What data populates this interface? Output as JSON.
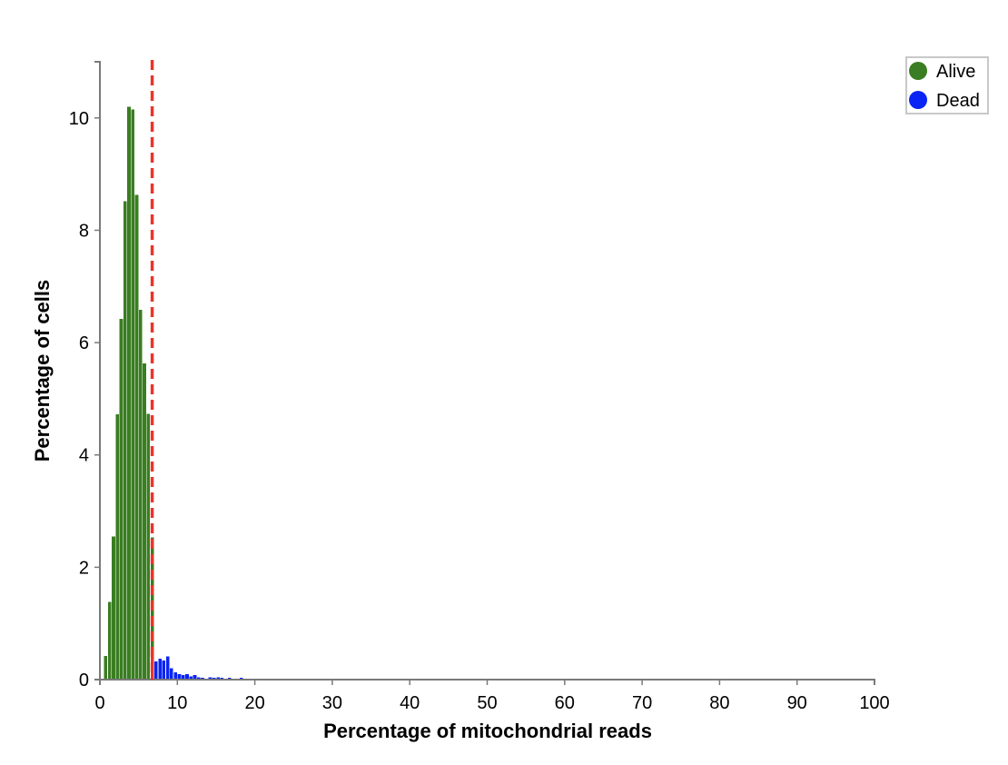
{
  "chart_data": {
    "type": "bar",
    "title": "",
    "xlabel": "Percentage of mitochondrial reads",
    "ylabel": "Percentage of cells",
    "xlim": [
      0,
      100
    ],
    "ylim": [
      0,
      11
    ],
    "xticks": [
      0,
      10,
      20,
      30,
      40,
      50,
      60,
      70,
      80,
      90,
      100
    ],
    "yticks": [
      0,
      2,
      4,
      6,
      8,
      10
    ],
    "bin_width": 0.5,
    "grid": false,
    "legend_position": "top-right",
    "threshold": {
      "x": 6.75,
      "color": "#e8352b",
      "style": "dashed"
    },
    "series": [
      {
        "name": "Alive",
        "color": "#3a7d22",
        "x": [
          0.5,
          1.0,
          1.5,
          2.0,
          2.5,
          3.0,
          3.5,
          4.0,
          4.5,
          5.0,
          5.5,
          6.0,
          6.5
        ],
        "values": [
          0.42,
          1.38,
          2.55,
          4.72,
          6.42,
          8.52,
          10.2,
          10.15,
          8.63,
          6.58,
          5.63,
          4.73,
          2.53
        ]
      },
      {
        "name": "Alive",
        "color": "#3a7d22",
        "x": [
          7.0,
          7.5,
          8.0,
          8.5,
          9.0,
          9.5,
          10.0,
          10.5,
          11.0,
          11.5,
          12.0,
          12.5,
          13.0,
          13.5,
          14.0,
          14.5,
          15.0,
          15.5,
          16.0,
          16.5,
          17.0,
          17.5,
          18.0,
          19.5,
          21.0,
          23.5,
          25.5,
          29.5,
          31.5,
          92.5
        ],
        "values": [
          0.0,
          0.0,
          0.0,
          0.0,
          0.0,
          0.0,
          0.0,
          0.0,
          0.0,
          0.0,
          0.0,
          0.0,
          0.0,
          0.0,
          0.0,
          0.0,
          0.0,
          0.0,
          0.0,
          0.0,
          0.0,
          0.0,
          0.0,
          0.0,
          0.0,
          0.0,
          0.0,
          0.0,
          0.0,
          0.0
        ]
      }
    ],
    "series_extra": [
      {
        "name": "Dead",
        "color": "#0a24f5",
        "x": [
          7.0,
          7.5,
          8.0,
          8.5,
          9.0,
          9.5,
          10.0,
          10.5,
          11.0,
          11.5,
          12.0,
          12.5,
          13.0,
          13.5,
          14.0,
          14.5,
          15.0,
          15.5,
          16.0,
          16.5,
          17.0,
          17.5,
          18.0,
          19.5,
          21.0,
          23.5,
          25.5,
          29.5,
          31.5,
          92.5
        ],
        "values": [
          0.32,
          0.37,
          0.34,
          0.41,
          0.2,
          0.13,
          0.1,
          0.08,
          0.1,
          0.06,
          0.08,
          0.04,
          0.03,
          0.02,
          0.04,
          0.03,
          0.04,
          0.03,
          0.02,
          0.03,
          0.02,
          0.02,
          0.03,
          0.02,
          0.02,
          0.02,
          0.02,
          0.02,
          0.02,
          0.02
        ]
      }
    ],
    "threshold_bin": {
      "x": 6.5,
      "value": 0.55,
      "color": "#e8352b"
    },
    "legend": [
      {
        "label": "Alive",
        "color": "#3a7d22"
      },
      {
        "label": "Dead",
        "color": "#0a24f5"
      }
    ]
  }
}
